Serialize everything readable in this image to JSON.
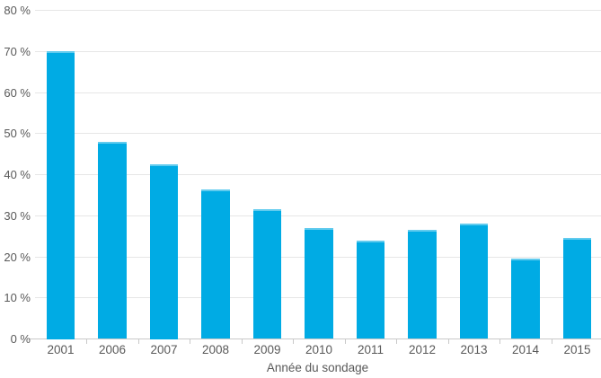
{
  "chart_data": {
    "type": "bar",
    "title": "",
    "xlabel": "Année du sondage",
    "ylabel": "",
    "categories": [
      "2001",
      "2006",
      "2007",
      "2008",
      "2009",
      "2010",
      "2011",
      "2012",
      "2013",
      "2014",
      "2015"
    ],
    "values": [
      70,
      48,
      42.5,
      36.5,
      31.5,
      27,
      24,
      26.5,
      28,
      19.5,
      24.5
    ],
    "ylim": [
      0,
      80
    ],
    "y_tick_interval": 10,
    "y_tick_labels": [
      "0 %",
      "10 %",
      "20 %",
      "30 %",
      "40 %",
      "50 %",
      "60 %",
      "70 %",
      "80 %"
    ],
    "grid": true,
    "legend": false,
    "colors": {
      "bar": "#00abe4",
      "gridline": "#e6e6e6",
      "axis_line": "#c9c9c9",
      "text": "#595959"
    }
  }
}
